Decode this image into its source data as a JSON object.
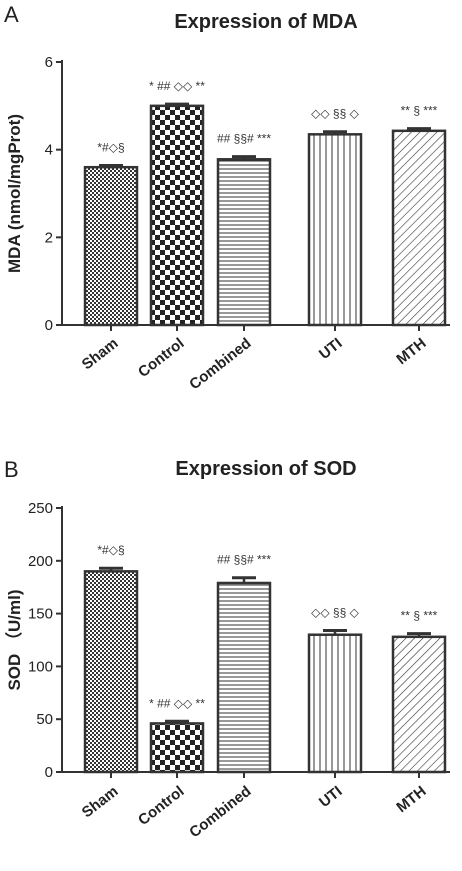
{
  "chart_data": [
    {
      "panel_label": "A",
      "type": "bar",
      "title": "Expression of MDA",
      "ylabel": "MDA (nmol/mgProt)",
      "xlabel": "",
      "ylim": [
        0,
        6
      ],
      "yticks": [
        "0",
        "2",
        "4",
        "6"
      ],
      "categories": [
        "Sham",
        "Control",
        "Combined",
        "UTI",
        "MTH"
      ],
      "values": [
        3.6,
        5.0,
        3.78,
        4.35,
        4.43
      ],
      "errors": [
        0.04,
        0.04,
        0.06,
        0.06,
        0.05
      ],
      "annotations": [
        "*#◇§",
        "* ## ◇◇ **",
        "## §§# ***",
        "◇◇ §§ ◇",
        "** § ***"
      ],
      "patterns": [
        "fine-check",
        "checker",
        "horizontal",
        "vertical",
        "diagonal"
      ]
    },
    {
      "panel_label": "B",
      "type": "bar",
      "title": "Expression of SOD",
      "ylabel": "SOD （U/ml)",
      "xlabel": "",
      "ylim": [
        0,
        250
      ],
      "yticks": [
        "0",
        "50",
        "100",
        "150",
        "200",
        "250"
      ],
      "categories": [
        "Sham",
        "Control",
        "Combined",
        "UTI",
        "MTH"
      ],
      "values": [
        190,
        46,
        179,
        130,
        128
      ],
      "errors": [
        3,
        2,
        5,
        4,
        3
      ],
      "annotations": [
        "*#◇§",
        "* ## ◇◇ **",
        "## §§# ***",
        "◇◇ §§ ◇",
        "** § ***"
      ],
      "patterns": [
        "fine-check",
        "checker",
        "horizontal",
        "vertical",
        "diagonal"
      ]
    }
  ]
}
